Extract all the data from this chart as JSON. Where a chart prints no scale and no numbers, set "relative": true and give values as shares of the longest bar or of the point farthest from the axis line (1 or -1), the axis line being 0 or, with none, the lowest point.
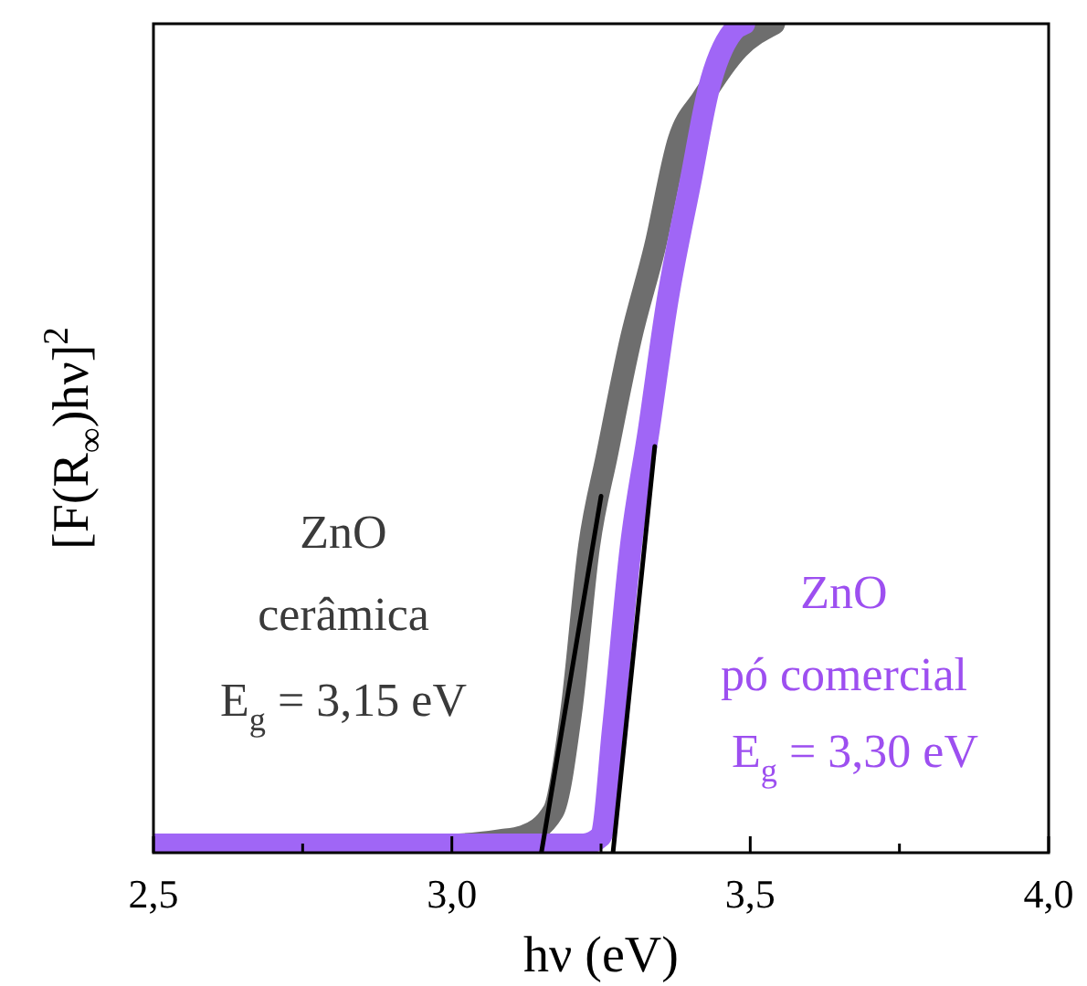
{
  "chart_data": {
    "type": "line",
    "relative": true,
    "xlabel": "hν (eV)",
    "ylabel": "[F(R$_{∞}$)hν]$^{2}$",
    "xlim": [
      2.5,
      4.0
    ],
    "xticks": [
      {
        "value": 2.5,
        "label": "2,5"
      },
      {
        "value": 2.75,
        "label": null
      },
      {
        "value": 3.0,
        "label": "3,0"
      },
      {
        "value": 3.25,
        "label": null
      },
      {
        "value": 3.5,
        "label": "3,5"
      },
      {
        "value": 3.75,
        "label": null
      },
      {
        "value": 4.0,
        "label": "4,0"
      }
    ],
    "series": [
      {
        "color": "#6e6e6e",
        "x": [
          2.5,
          2.8,
          3.0,
          3.08,
          3.12,
          3.17,
          3.2,
          3.23,
          3.26,
          3.3,
          3.34,
          3.38,
          3.42,
          3.48,
          3.54
        ],
        "values": [
          0.01,
          0.01,
          0.01,
          0.015,
          0.02,
          0.05,
          0.17,
          0.37,
          0.48,
          0.62,
          0.73,
          0.86,
          0.91,
          0.97,
          1.0
        ]
      },
      {
        "color": "#a066f6",
        "x": [
          2.5,
          2.8,
          3.0,
          3.22,
          3.25,
          3.27,
          3.3,
          3.33,
          3.36,
          3.4,
          3.43,
          3.47,
          3.49
        ],
        "values": [
          0.01,
          0.01,
          0.01,
          0.01,
          0.02,
          0.15,
          0.37,
          0.51,
          0.66,
          0.81,
          0.92,
          0.99,
          1.0
        ]
      },
      {
        "color": "#000000",
        "x": [
          3.15,
          3.25
        ],
        "values": [
          0,
          0.43
        ]
      },
      {
        "color": "#000000",
        "x": [
          3.27,
          3.34
        ],
        "values": [
          0,
          0.49
        ]
      }
    ],
    "annotations": [
      "ZnO",
      "cerâmica",
      "E$_{g}$ = 3,15 eV",
      "ZnO",
      "pó comercial",
      "E$_{g}$ = 3,30 eV"
    ]
  }
}
